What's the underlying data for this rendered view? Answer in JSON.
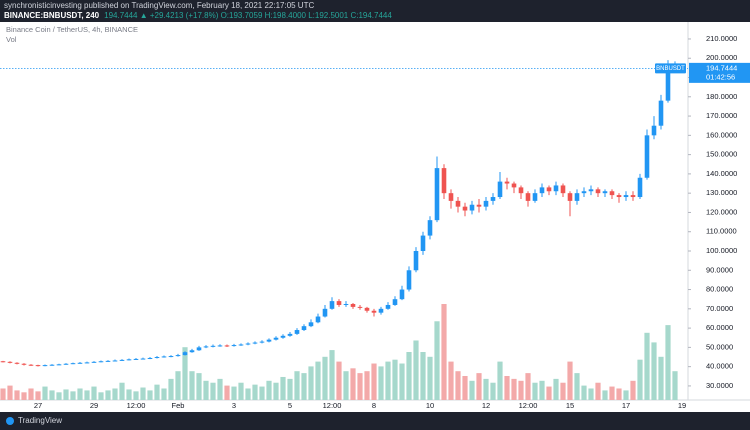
{
  "header": {
    "line1": "synchronisticinvesting published on TradingView.com, February 18, 2021 22:17:05 UTC",
    "symbol": "BINANCE:BNBUSDT, 240",
    "quote": "194.7444 ▲ +29.4213 (+17.8%) O:193.7059 H:198.4000 L:192.5001 C:194.7444"
  },
  "footer": {
    "brand": "TradingView"
  },
  "chart_data": {
    "type": "candlestick",
    "title": "Binance Coin / TetherUS, 4h, BINANCE",
    "volume_label": "Vol",
    "price_label": "BNBUSDT",
    "countdown": "01:42:56",
    "up_color": "#2196f3",
    "down_color": "#ef5350",
    "volume_up_color": "#a6d8cc",
    "volume_down_color": "#f3a9a9",
    "ylim": [
      22.7,
      218.8
    ],
    "yticks": [
      {
        "value": 30,
        "label": "30.0000"
      },
      {
        "value": 40,
        "label": "40.0000"
      },
      {
        "value": 50,
        "label": "50.0000"
      },
      {
        "value": 60,
        "label": "60.0000"
      },
      {
        "value": 70,
        "label": "70.0000"
      },
      {
        "value": 80,
        "label": "80.0000"
      },
      {
        "value": 90,
        "label": "90.0000"
      },
      {
        "value": 100,
        "label": "100.0000"
      },
      {
        "value": 110,
        "label": "110.0000"
      },
      {
        "value": 120,
        "label": "120.0000"
      },
      {
        "value": 130,
        "label": "130.0000"
      },
      {
        "value": 140,
        "label": "140.0000"
      },
      {
        "value": 150,
        "label": "150.0000"
      },
      {
        "value": 160,
        "label": "160.0000"
      },
      {
        "value": 170,
        "label": "170.0000"
      },
      {
        "value": 180,
        "label": "180.0000"
      },
      {
        "value": 190,
        "label": "190.0000"
      },
      {
        "value": 200,
        "label": "200.0000"
      },
      {
        "value": 210,
        "label": "210.0000"
      }
    ],
    "categories": [
      null,
      null,
      null,
      null,
      null,
      "27",
      null,
      null,
      null,
      null,
      null,
      null,
      null,
      "29",
      null,
      null,
      null,
      null,
      null,
      "12:00",
      null,
      null,
      null,
      null,
      null,
      "Feb",
      null,
      null,
      null,
      null,
      null,
      null,
      null,
      "3",
      null,
      null,
      null,
      null,
      null,
      null,
      null,
      "5",
      null,
      null,
      null,
      null,
      null,
      "12:00",
      null,
      null,
      null,
      null,
      null,
      "8",
      null,
      null,
      null,
      null,
      null,
      null,
      null,
      "10",
      null,
      null,
      null,
      null,
      null,
      null,
      null,
      "12",
      null,
      null,
      null,
      null,
      null,
      "12:00",
      null,
      null,
      null,
      null,
      null,
      "15",
      null,
      null,
      null,
      null,
      null,
      null,
      null,
      "17",
      null,
      null,
      null,
      null,
      null,
      null,
      null,
      "19"
    ],
    "open": [
      42.8,
      42.5,
      42,
      41.5,
      41,
      40.8,
      40.5,
      40.8,
      41,
      41.2,
      41.5,
      41.8,
      42,
      42.2,
      42.5,
      42.8,
      43,
      43.2,
      43.5,
      43.8,
      44,
      44.2,
      44.5,
      45,
      45.3,
      45.5,
      46,
      47.5,
      48.5,
      50,
      50.5,
      50.8,
      51,
      50.8,
      51.2,
      51.5,
      52,
      52.5,
      53,
      54,
      55,
      56,
      57,
      59,
      61,
      63,
      66,
      70,
      74,
      72,
      72.5,
      71,
      70.5,
      69,
      68,
      70,
      72,
      75,
      80,
      90,
      100,
      108,
      116,
      143,
      130,
      126,
      123,
      121,
      124,
      123,
      126,
      128,
      136,
      135,
      133,
      130,
      126,
      130,
      133,
      131,
      134,
      130,
      126,
      130,
      131,
      132,
      130,
      131,
      129,
      128,
      129,
      128,
      138,
      160,
      165,
      178,
      193.7059,
      null
    ],
    "high": [
      43,
      42.8,
      42.3,
      41.8,
      41.3,
      41,
      41.1,
      41.3,
      41.5,
      41.8,
      42.1,
      42.4,
      42.6,
      42.9,
      43.2,
      43.4,
      43.7,
      43.9,
      44.2,
      44.5,
      44.7,
      45,
      45.5,
      45.8,
      46,
      46.6,
      48,
      49.2,
      50.8,
      51.2,
      51.5,
      51.6,
      51.5,
      51.8,
      52.1,
      52.6,
      53.1,
      53.7,
      54.7,
      55.8,
      56.8,
      58,
      60,
      62,
      64.5,
      67.5,
      72,
      76,
      75,
      74,
      73,
      72,
      71,
      70,
      71,
      73.5,
      76.5,
      82,
      92,
      102,
      110,
      118,
      149,
      145,
      132,
      128,
      125,
      126,
      127,
      128,
      130,
      141,
      138,
      136,
      134,
      131,
      132,
      135,
      134,
      136,
      135,
      131,
      132,
      133,
      134,
      133,
      132,
      132,
      130,
      131,
      131,
      140,
      163,
      170,
      181,
      199,
      198.4,
      null
    ],
    "low": [
      42.2,
      41.7,
      41.2,
      40.6,
      40.4,
      40.1,
      40.2,
      40.5,
      40.8,
      41,
      41.3,
      41.5,
      41.7,
      42,
      42.2,
      42.5,
      42.8,
      43,
      43.2,
      43.5,
      43.7,
      43.9,
      44.2,
      44.7,
      44.9,
      45.2,
      45.8,
      47.2,
      48.2,
      49.6,
      50,
      50.3,
      50.2,
      50.4,
      50.8,
      51.1,
      51.6,
      52.1,
      52.6,
      53.6,
      54.5,
      55.5,
      56.5,
      58.5,
      60.5,
      62.5,
      65.5,
      69.5,
      71,
      71,
      70,
      69.5,
      68,
      66,
      67,
      69.5,
      71.5,
      74.5,
      79,
      89,
      98,
      106,
      115,
      127,
      122,
      120,
      118,
      119,
      120,
      121,
      124,
      127,
      132,
      130,
      127,
      123,
      125,
      128,
      129,
      129,
      128,
      118,
      124,
      128,
      129,
      128,
      128,
      127,
      125,
      126,
      126,
      127,
      137,
      158,
      163,
      177,
      192.5001,
      null
    ],
    "close": [
      42.5,
      42,
      41.5,
      41,
      40.8,
      40.5,
      40.8,
      41,
      41.2,
      41.5,
      41.8,
      42,
      42.2,
      42.5,
      42.8,
      43,
      43.2,
      43.5,
      43.8,
      44,
      44.2,
      44.5,
      45,
      45.3,
      45.5,
      46,
      47.5,
      48.5,
      50,
      50.5,
      50.8,
      51,
      50.8,
      51.2,
      51.5,
      52,
      52.5,
      53,
      54,
      55,
      56,
      57,
      59,
      61,
      63,
      66,
      70,
      74,
      72,
      72.5,
      71,
      70.5,
      69,
      68,
      70,
      72,
      75,
      80,
      90,
      100,
      108,
      116,
      143,
      130,
      126,
      123,
      121,
      124,
      123,
      126,
      128,
      136,
      135,
      133,
      130,
      126,
      130,
      133,
      131,
      134,
      130,
      126,
      130,
      131,
      132,
      130,
      131,
      129,
      128,
      129,
      128,
      138,
      160,
      165,
      178,
      193,
      194.7444,
      null
    ],
    "volume": [
      12,
      15,
      10,
      8,
      12,
      9,
      14,
      10,
      8,
      11,
      9,
      12,
      10,
      14,
      8,
      10,
      12,
      18,
      11,
      9,
      13,
      10,
      16,
      12,
      22,
      30,
      55,
      30,
      28,
      20,
      18,
      22,
      15,
      14,
      18,
      12,
      16,
      14,
      20,
      18,
      24,
      22,
      30,
      28,
      35,
      40,
      45,
      52,
      40,
      30,
      33,
      28,
      30,
      38,
      35,
      40,
      42,
      38,
      50,
      62,
      50,
      45,
      82,
      100,
      40,
      30,
      25,
      20,
      28,
      22,
      18,
      40,
      25,
      22,
      20,
      28,
      18,
      20,
      14,
      22,
      18,
      40,
      28,
      15,
      12,
      18,
      10,
      14,
      12,
      10,
      20,
      42,
      70,
      60,
      45,
      78,
      30,
      null
    ]
  }
}
